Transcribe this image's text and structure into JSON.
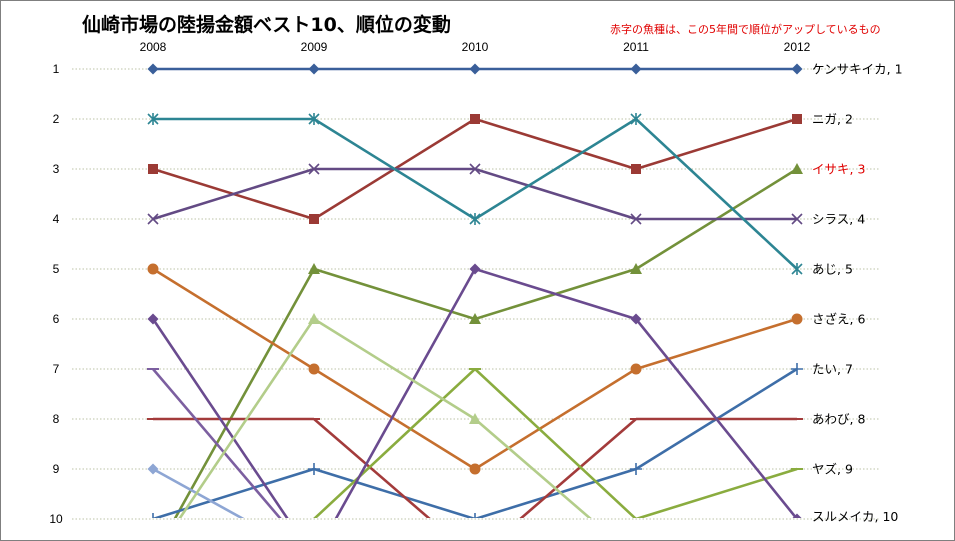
{
  "chart_data": {
    "type": "line",
    "title": "仙崎市場の陸揚金額ベスト10、順位の変動",
    "note": "赤字の魚種は、この5年間で順位がアップしているもの",
    "x": [
      "2008",
      "2009",
      "2010",
      "2011",
      "2012"
    ],
    "y_ticks": [
      "1",
      "2",
      "3",
      "4",
      "5",
      "6",
      "7",
      "8",
      "9",
      "10"
    ],
    "ylim": [
      1,
      10
    ],
    "y_inverted": true,
    "grid": "horizontal-dotted",
    "series": [
      {
        "label": "ケンサキイカ, 1",
        "values": [
          1,
          1,
          1,
          1,
          1
        ],
        "color": "#3a5f9a",
        "marker": "diamond",
        "highlight": false
      },
      {
        "label": "ニガ, 2",
        "values": [
          3,
          4,
          2,
          3,
          2
        ],
        "color": "#9b3a35",
        "marker": "square",
        "highlight": false
      },
      {
        "label": "イサキ, 3",
        "values": [
          null,
          5,
          6,
          5,
          3
        ],
        "color": "#73913a",
        "marker": "triangle",
        "highlight": true
      },
      {
        "label": "シラス, 4",
        "values": [
          4,
          3,
          3,
          4,
          4
        ],
        "color": "#634a84",
        "marker": "x",
        "highlight": false
      },
      {
        "label": "あじ, 5",
        "values": [
          2,
          2,
          4,
          2,
          5
        ],
        "color": "#2d8593",
        "marker": "star",
        "highlight": false
      },
      {
        "label": "さざえ, 6",
        "values": [
          5,
          7,
          9,
          7,
          6
        ],
        "color": "#c56f2e",
        "marker": "circle",
        "highlight": false
      },
      {
        "label": "たい, 7",
        "values": [
          10,
          9,
          10,
          9,
          7
        ],
        "color": "#3e6ea8",
        "marker": "plus",
        "highlight": false
      },
      {
        "label": "あわび, 8",
        "values": [
          8,
          8,
          null,
          8,
          8
        ],
        "color": "#a33b3b",
        "marker": "dash",
        "highlight": false
      },
      {
        "label": "ヤズ, 9",
        "values": [
          null,
          10,
          7,
          10,
          9
        ],
        "color": "#8aac3f",
        "marker": "dash",
        "highlight": false
      },
      {
        "label": "スルメイカ, 10",
        "values": [
          6,
          null,
          5,
          6,
          10
        ],
        "color": "#6a4b8f",
        "marker": "diamond",
        "highlight": false
      },
      {
        "label": "",
        "values": [
          7,
          null,
          null,
          null,
          null
        ],
        "color": "#7c5fa0",
        "marker": "dash",
        "highlight": false
      },
      {
        "label": "",
        "values": [
          9,
          null,
          null,
          null,
          null
        ],
        "color": "#8ea6d4",
        "marker": "diamond",
        "highlight": false
      },
      {
        "label": "",
        "values": [
          null,
          6,
          8,
          null,
          null
        ],
        "color": "#b3cd8a",
        "marker": "triangle",
        "highlight": false
      }
    ]
  },
  "colors": {
    "highlight_text": "#e00000",
    "grid": "#a8b08a",
    "frame": "#7f7f7f"
  }
}
